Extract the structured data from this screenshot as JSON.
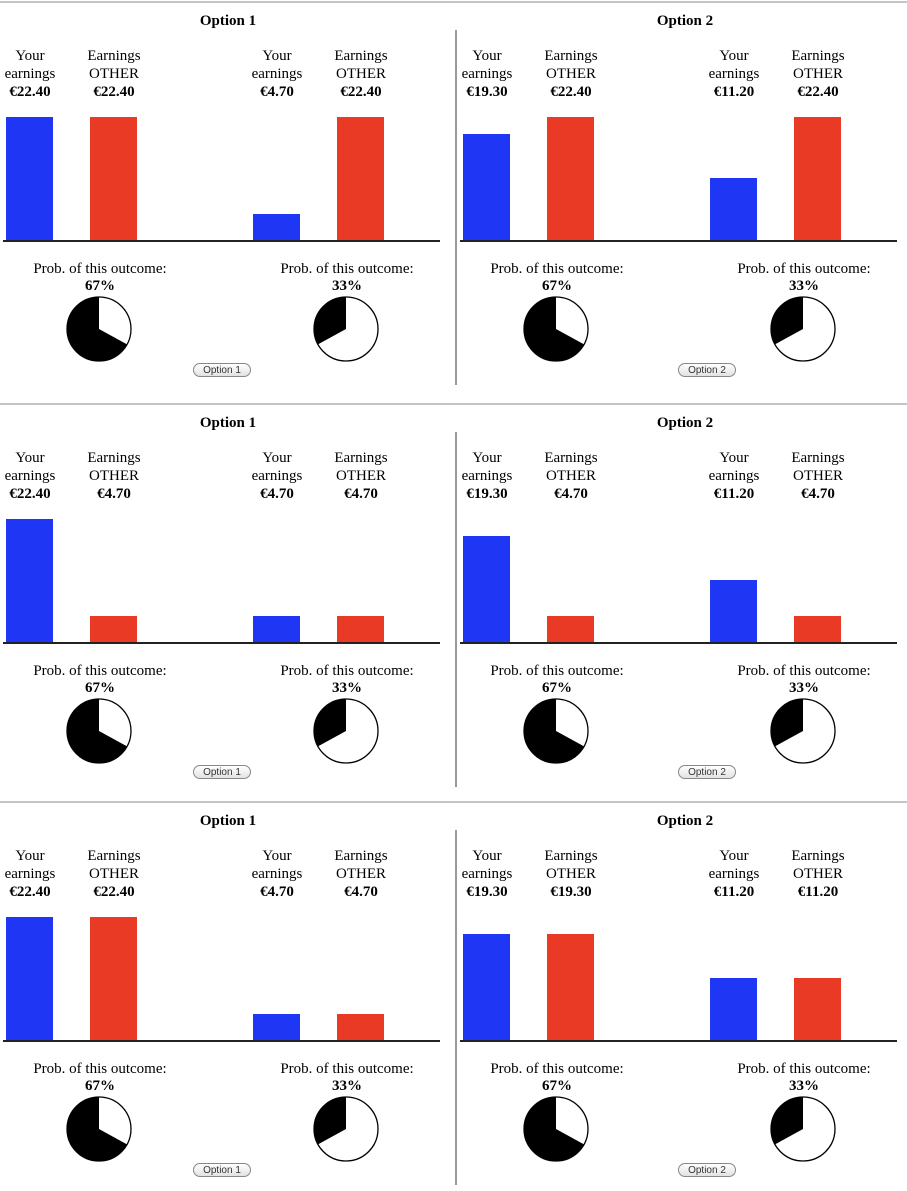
{
  "labels": {
    "you_line1": "Your",
    "you_line2": "earnings",
    "other_line1": "Earnings",
    "other_line2": "OTHER",
    "prob_label": "Prob. of this outcome:"
  },
  "colors": {
    "you": "#1f36f5",
    "other": "#e83a24"
  },
  "bar_scale_max": 22.4,
  "decisions": [
    {
      "options": [
        {
          "title": "Option 1",
          "button": "Option 1",
          "outcomes": [
            {
              "you": "€22.40",
              "other": "€22.40",
              "you_value": 22.4,
              "other_value": 22.4,
              "prob": "67%",
              "prob_value": 0.67
            },
            {
              "you": "€4.70",
              "other": "€22.40",
              "you_value": 4.7,
              "other_value": 22.4,
              "prob": "33%",
              "prob_value": 0.33
            }
          ]
        },
        {
          "title": "Option 2",
          "button": "Option 2",
          "outcomes": [
            {
              "you": "€19.30",
              "other": "€22.40",
              "you_value": 19.3,
              "other_value": 22.4,
              "prob": "67%",
              "prob_value": 0.67
            },
            {
              "you": "€11.20",
              "other": "€22.40",
              "you_value": 11.2,
              "other_value": 22.4,
              "prob": "33%",
              "prob_value": 0.33
            }
          ]
        }
      ]
    },
    {
      "options": [
        {
          "title": "Option 1",
          "button": "Option 1",
          "outcomes": [
            {
              "you": "€22.40",
              "other": "€4.70",
              "you_value": 22.4,
              "other_value": 4.7,
              "prob": "67%",
              "prob_value": 0.67
            },
            {
              "you": "€4.70",
              "other": "€4.70",
              "you_value": 4.7,
              "other_value": 4.7,
              "prob": "33%",
              "prob_value": 0.33
            }
          ]
        },
        {
          "title": "Option 2",
          "button": "Option 2",
          "outcomes": [
            {
              "you": "€19.30",
              "other": "€4.70",
              "you_value": 19.3,
              "other_value": 4.7,
              "prob": "67%",
              "prob_value": 0.67
            },
            {
              "you": "€11.20",
              "other": "€4.70",
              "you_value": 11.2,
              "other_value": 4.7,
              "prob": "33%",
              "prob_value": 0.33
            }
          ]
        }
      ]
    },
    {
      "options": [
        {
          "title": "Option 1",
          "button": "Option 1",
          "outcomes": [
            {
              "you": "€22.40",
              "other": "€22.40",
              "you_value": 22.4,
              "other_value": 22.4,
              "prob": "67%",
              "prob_value": 0.67
            },
            {
              "you": "€4.70",
              "other": "€4.70",
              "you_value": 4.7,
              "other_value": 4.7,
              "prob": "33%",
              "prob_value": 0.33
            }
          ]
        },
        {
          "title": "Option 2",
          "button": "Option 2",
          "outcomes": [
            {
              "you": "€19.30",
              "other": "€19.30",
              "you_value": 19.3,
              "other_value": 19.3,
              "prob": "67%",
              "prob_value": 0.67
            },
            {
              "you": "€11.20",
              "other": "€11.20",
              "you_value": 11.2,
              "other_value": 11.2,
              "prob": "33%",
              "prob_value": 0.33
            }
          ]
        }
      ]
    }
  ]
}
